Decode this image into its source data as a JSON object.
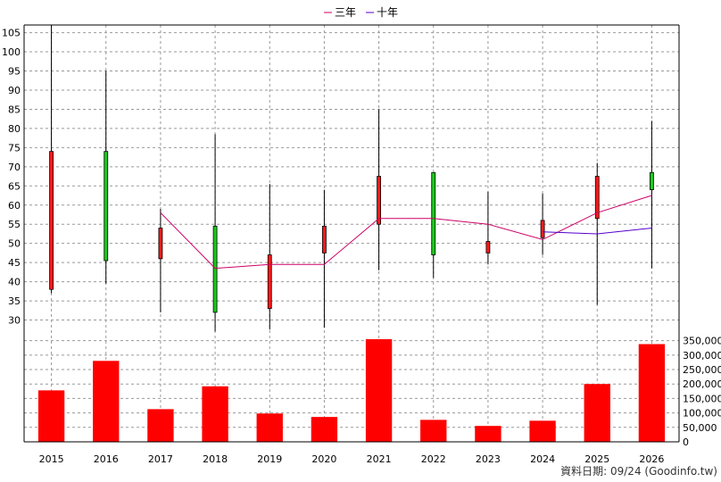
{
  "legend": {
    "items": [
      {
        "label": "三年",
        "color": "#cc0066"
      },
      {
        "label": "十年",
        "color": "#5500cc"
      }
    ]
  },
  "footer": {
    "text": "資料日期: 09/24  (Goodinfo.tw)"
  },
  "colors": {
    "up": "#ff1a1a",
    "down": "#1acc1a",
    "volume": "#ff0000",
    "grid": "#999999"
  },
  "chart_data": [
    {
      "type": "candlestick",
      "categories": [
        "2015",
        "2016",
        "2017",
        "2018",
        "2019",
        "2020",
        "2021",
        "2022",
        "2023",
        "2024",
        "2025",
        "2026"
      ],
      "ylim": [
        25,
        107
      ],
      "yticks": [
        30,
        35,
        40,
        45,
        50,
        55,
        60,
        65,
        70,
        75,
        80,
        85,
        90,
        95,
        100,
        105
      ],
      "grid": true,
      "candles": [
        {
          "year": "2015",
          "open": 74,
          "close": 38,
          "high": 107,
          "low": 37,
          "dir": "up"
        },
        {
          "year": "2016",
          "open": 45.5,
          "close": 74,
          "high": 95,
          "low": 39.5,
          "dir": "down"
        },
        {
          "year": "2017",
          "open": 54,
          "close": 46,
          "high": 59,
          "low": 32,
          "dir": "up"
        },
        {
          "year": "2018",
          "open": 32,
          "close": 54.5,
          "high": 78.5,
          "low": 27,
          "dir": "down"
        },
        {
          "year": "2019",
          "open": 47,
          "close": 33,
          "high": 65.5,
          "low": 27.5,
          "dir": "up"
        },
        {
          "year": "2020",
          "open": 54.5,
          "close": 47.5,
          "high": 64,
          "low": 28,
          "dir": "up"
        },
        {
          "year": "2021",
          "open": 67.5,
          "close": 55,
          "high": 85,
          "low": 43,
          "dir": "up"
        },
        {
          "year": "2022",
          "open": 47,
          "close": 68.5,
          "high": 68.5,
          "low": 41,
          "dir": "down"
        },
        {
          "year": "2023",
          "open": 50.5,
          "close": 47.5,
          "high": 63.5,
          "low": 44.5,
          "dir": "up"
        },
        {
          "year": "2024",
          "open": 56,
          "close": 51.5,
          "high": 63,
          "low": 47,
          "dir": "up"
        },
        {
          "year": "2025",
          "open": 67.5,
          "close": 56.5,
          "high": 71,
          "low": 34,
          "dir": "up"
        },
        {
          "year": "2026",
          "open": 64,
          "close": 68.5,
          "high": 82,
          "low": 43.5,
          "dir": "down"
        }
      ],
      "series": [
        {
          "name": "三年",
          "values": [
            null,
            null,
            58,
            43.5,
            44.5,
            44.5,
            56.5,
            56.5,
            55,
            51,
            58,
            62.5
          ]
        },
        {
          "name": "十年",
          "values": [
            null,
            null,
            null,
            null,
            null,
            null,
            null,
            null,
            null,
            53,
            52.5,
            54
          ]
        }
      ]
    },
    {
      "type": "bar",
      "categories": [
        "2015",
        "2016",
        "2017",
        "2018",
        "2019",
        "2020",
        "2021",
        "2022",
        "2023",
        "2024",
        "2025",
        "2026"
      ],
      "values": [
        178000,
        280000,
        113000,
        192000,
        98000,
        86000,
        355000,
        76000,
        55000,
        73000,
        200000,
        338000
      ],
      "ylim": [
        0,
        355000
      ],
      "yticks": [
        0,
        50000,
        100000,
        150000,
        200000,
        250000,
        300000,
        350000
      ],
      "ytick_labels": [
        "0",
        "50,000",
        "100,000",
        "150,000",
        "200,000",
        "250,000",
        "300,000",
        "350,000"
      ],
      "grid": true
    }
  ]
}
